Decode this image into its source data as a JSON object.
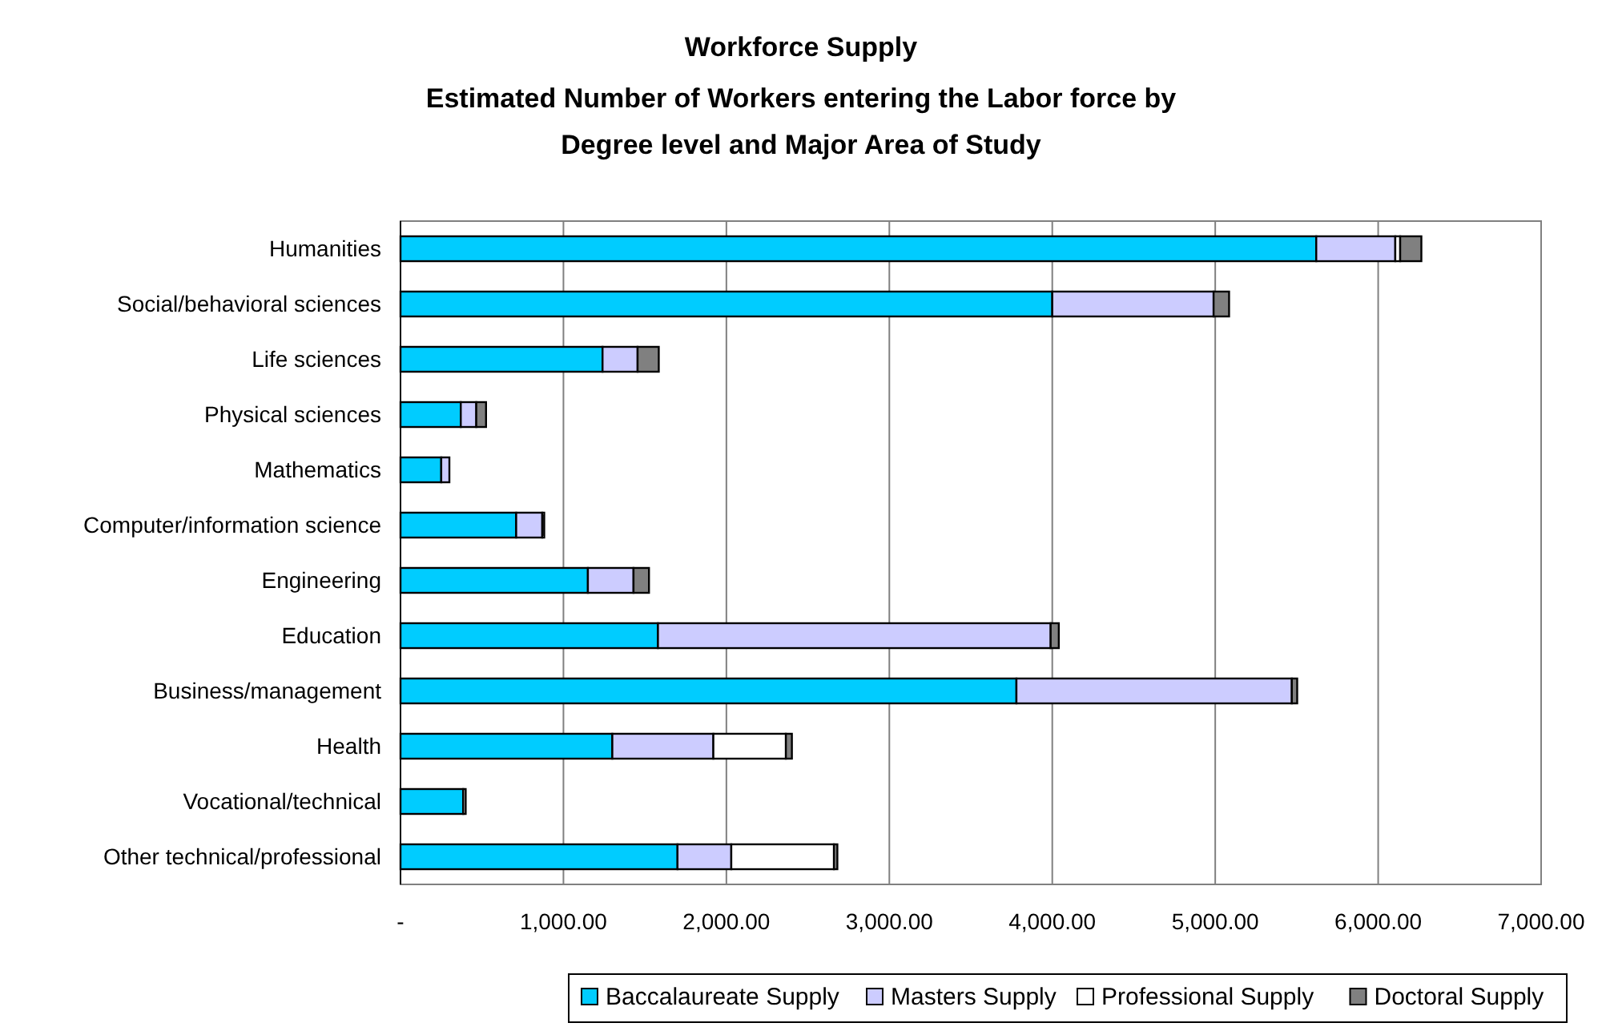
{
  "chart_data": {
    "type": "bar",
    "orientation": "horizontal",
    "stacked": true,
    "title": "Workforce Supply",
    "subtitle": "Estimated Number of Workers entering the Labor force by Degree level and Major Area of Study",
    "categories": [
      "Humanities",
      "Social/behavioral sciences",
      "Life sciences",
      "Physical sciences",
      "Mathematics",
      "Computer/information science",
      "Engineering",
      "Education",
      "Business/management",
      "Health",
      "Vocational/technical",
      "Other technical/professional"
    ],
    "series": [
      {
        "name": "Baccalaureate Supply",
        "color": "#00ccff",
        "values": [
          5620,
          4000,
          1240,
          370,
          250,
          710,
          1150,
          1580,
          3780,
          1300,
          385,
          1700
        ]
      },
      {
        "name": "Masters Supply",
        "color": "#ccccff",
        "values": [
          485,
          990,
          215,
          95,
          50,
          160,
          280,
          2410,
          1690,
          620,
          null,
          330
        ]
      },
      {
        "name": "Professional Supply",
        "color": "#ffffff",
        "values": [
          30,
          null,
          null,
          null,
          null,
          null,
          null,
          null,
          null,
          445,
          15,
          630
        ]
      },
      {
        "name": "Doctoral Supply",
        "color": "#808080",
        "values": [
          130,
          95,
          130,
          60,
          null,
          12,
          95,
          50,
          33,
          37,
          null,
          21
        ]
      }
    ],
    "xlim": [
      0,
      7000
    ],
    "xticks": [
      {
        "value": 0,
        "label": "-"
      },
      {
        "value": 1000,
        "label": "1,000.00"
      },
      {
        "value": 2000,
        "label": "2,000.00"
      },
      {
        "value": 3000,
        "label": "3,000.00"
      },
      {
        "value": 4000,
        "label": "4,000.00"
      },
      {
        "value": 5000,
        "label": "5,000.00"
      },
      {
        "value": 6000,
        "label": "6,000.00"
      },
      {
        "value": 7000,
        "label": "7,000.00"
      }
    ],
    "grid": "x",
    "legend": "bottom"
  }
}
